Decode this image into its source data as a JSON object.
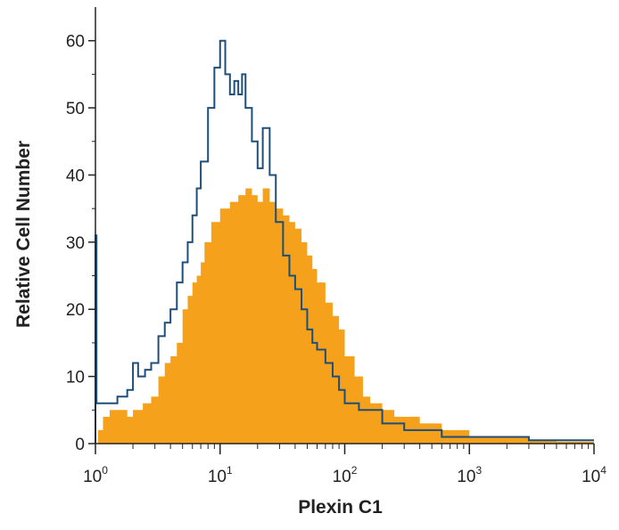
{
  "chart_data": {
    "type": "area",
    "title": "",
    "xlabel": "Plexin C1",
    "ylabel": "Relative Cell Number",
    "x_scale": "log",
    "xlim": [
      1,
      10000
    ],
    "ylim": [
      0,
      65
    ],
    "x_ticks": [
      {
        "base": "10",
        "exp": "0"
      },
      {
        "base": "10",
        "exp": "1"
      },
      {
        "base": "10",
        "exp": "2"
      },
      {
        "base": "10",
        "exp": "3"
      },
      {
        "base": "10",
        "exp": "4"
      }
    ],
    "y_ticks": [
      "0",
      "10",
      "20",
      "30",
      "40",
      "50",
      "60"
    ],
    "grid": false,
    "legend": "none",
    "series": [
      {
        "style": "filled",
        "color": "#f5a11c",
        "points": [
          [
            1,
            0
          ],
          [
            1.05,
            2
          ],
          [
            1.15,
            4
          ],
          [
            1.3,
            5
          ],
          [
            1.5,
            5
          ],
          [
            1.8,
            4
          ],
          [
            2,
            5
          ],
          [
            2.4,
            6
          ],
          [
            2.8,
            7
          ],
          [
            3.2,
            10
          ],
          [
            3.6,
            12
          ],
          [
            4,
            13
          ],
          [
            4.5,
            15
          ],
          [
            5,
            20
          ],
          [
            5.5,
            22
          ],
          [
            6,
            24
          ],
          [
            6.5,
            25
          ],
          [
            7,
            27
          ],
          [
            7.5,
            30
          ],
          [
            8.5,
            33
          ],
          [
            10,
            35
          ],
          [
            12,
            36
          ],
          [
            14,
            37
          ],
          [
            16,
            38
          ],
          [
            18,
            37
          ],
          [
            20,
            36
          ],
          [
            22,
            38
          ],
          [
            25,
            36
          ],
          [
            28,
            35
          ],
          [
            32,
            34
          ],
          [
            36,
            33
          ],
          [
            40,
            32
          ],
          [
            45,
            30
          ],
          [
            50,
            28
          ],
          [
            55,
            26
          ],
          [
            60,
            24
          ],
          [
            70,
            21
          ],
          [
            80,
            19
          ],
          [
            90,
            17
          ],
          [
            100,
            13
          ],
          [
            120,
            10
          ],
          [
            140,
            7
          ],
          [
            160,
            6
          ],
          [
            200,
            5
          ],
          [
            250,
            4
          ],
          [
            300,
            4
          ],
          [
            400,
            3
          ],
          [
            500,
            3
          ],
          [
            600,
            2
          ],
          [
            800,
            2
          ],
          [
            1000,
            1
          ],
          [
            1500,
            1
          ],
          [
            2000,
            1
          ],
          [
            3000,
            0.5
          ],
          [
            5000,
            0.3
          ],
          [
            10000,
            0.3
          ]
        ]
      },
      {
        "style": "outline",
        "color": "#1f4e79",
        "points": [
          [
            1,
            31
          ],
          [
            1.02,
            6
          ],
          [
            1.2,
            6
          ],
          [
            1.5,
            7
          ],
          [
            1.8,
            8
          ],
          [
            2,
            12
          ],
          [
            2.2,
            10
          ],
          [
            2.5,
            11
          ],
          [
            2.8,
            12
          ],
          [
            3.2,
            16
          ],
          [
            3.6,
            18
          ],
          [
            4,
            20
          ],
          [
            4.5,
            24
          ],
          [
            5,
            27
          ],
          [
            5.5,
            30
          ],
          [
            6,
            34
          ],
          [
            6.5,
            38
          ],
          [
            7,
            42
          ],
          [
            8,
            50
          ],
          [
            9,
            56
          ],
          [
            10,
            60
          ],
          [
            11,
            55
          ],
          [
            12,
            52
          ],
          [
            13,
            54
          ],
          [
            14,
            52
          ],
          [
            15,
            55
          ],
          [
            16,
            50
          ],
          [
            18,
            45
          ],
          [
            20,
            41
          ],
          [
            22,
            47
          ],
          [
            25,
            40
          ],
          [
            28,
            33
          ],
          [
            32,
            28
          ],
          [
            36,
            25
          ],
          [
            40,
            23
          ],
          [
            45,
            20
          ],
          [
            50,
            17
          ],
          [
            55,
            15
          ],
          [
            60,
            14
          ],
          [
            70,
            12
          ],
          [
            80,
            10
          ],
          [
            90,
            8
          ],
          [
            100,
            6
          ],
          [
            130,
            5
          ],
          [
            160,
            5
          ],
          [
            200,
            3
          ],
          [
            300,
            2
          ],
          [
            400,
            2
          ],
          [
            600,
            1
          ],
          [
            1000,
            1
          ],
          [
            2000,
            1
          ],
          [
            3000,
            0.5
          ],
          [
            10000,
            0.5
          ]
        ]
      }
    ]
  }
}
